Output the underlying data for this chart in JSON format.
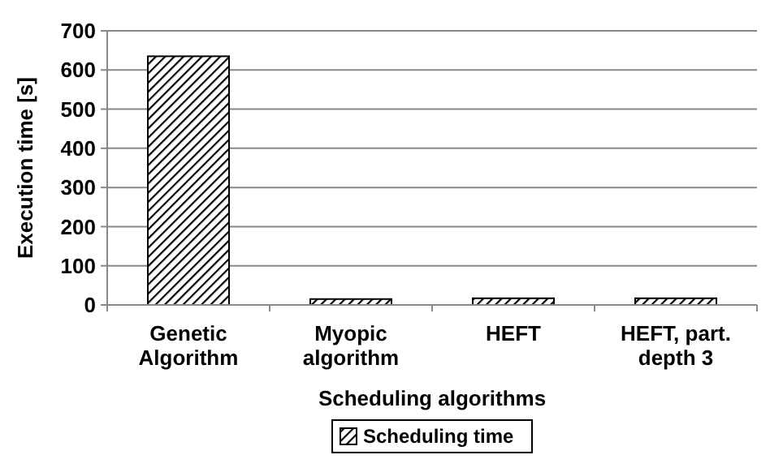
{
  "chart_data": {
    "type": "bar",
    "xlabel": "Scheduling algorithms",
    "ylabel": "Execution time [s]",
    "categories": [
      "Genetic Algorithm",
      "Myopic algorithm",
      "HEFT",
      "HEFT, part. depth 3"
    ],
    "series": [
      {
        "name": "Scheduling time",
        "color": "#000000",
        "values": [
          635,
          15,
          17,
          17
        ]
      }
    ],
    "ylim": [
      0,
      700
    ],
    "yticks": [
      0,
      100,
      200,
      300,
      400,
      500,
      600,
      700
    ],
    "grid": "y",
    "legend": "bottom"
  }
}
